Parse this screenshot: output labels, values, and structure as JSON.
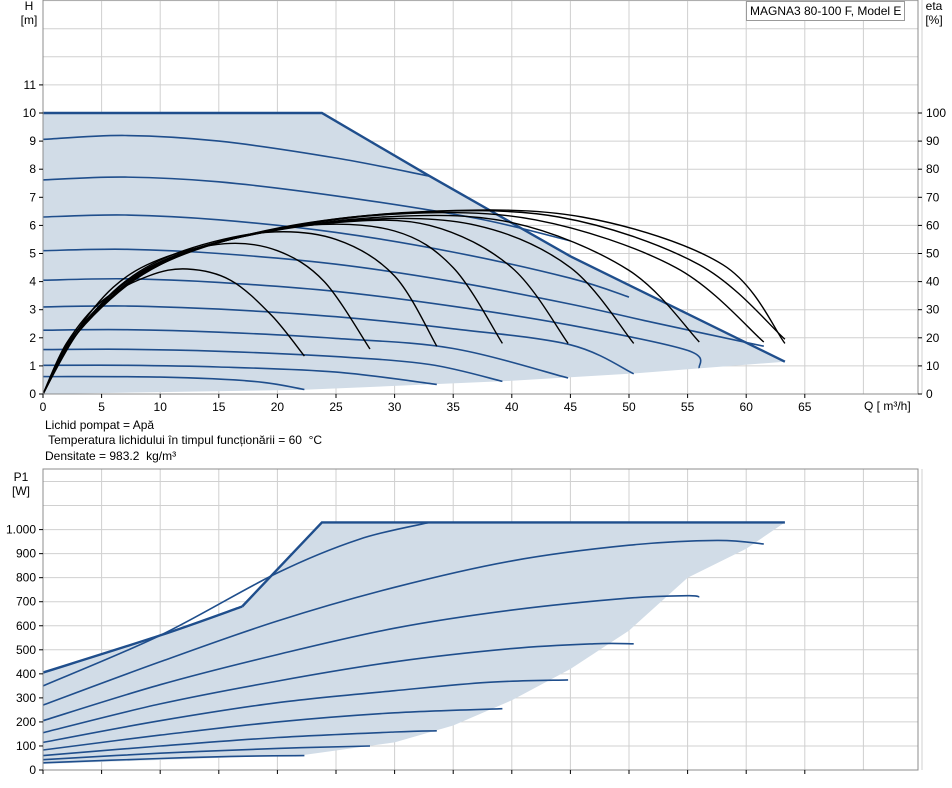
{
  "model_label": "MAGNA3 80-100 F, Model E",
  "fluid_info": {
    "line1": "Lichid pompat = Apă",
    "line2": " Temperatura lichidului în timpul funcționării = 60  °C",
    "line3": "Densitate = 983.2  kg/m³"
  },
  "colors": {
    "curve": "#1f4e8c",
    "fill": "#d1dce7",
    "efficiency": "#000000",
    "grid": "#d0d0d0"
  },
  "chart_data": [
    {
      "type": "line",
      "name": "head",
      "y_title": "H",
      "y_unit": "[m]",
      "y2_title": "eta",
      "y2_unit": "[%]",
      "x_title": "Q [ m³/h]",
      "xlim": [
        0,
        75
      ],
      "ylim": [
        0,
        14
      ],
      "y2lim": [
        0,
        140
      ],
      "x_ticks": [
        0,
        5,
        10,
        15,
        20,
        25,
        30,
        35,
        40,
        45,
        50,
        55,
        60,
        65
      ],
      "y_ticks": [
        0,
        1,
        2,
        3,
        4,
        5,
        6,
        7,
        8,
        9,
        10,
        11
      ],
      "y2_ticks": [
        0,
        10,
        20,
        30,
        40,
        50,
        60,
        70,
        80,
        90,
        100
      ],
      "grid": true,
      "envelope": {
        "max_curve": [
          [
            0,
            10.0
          ],
          [
            23.8,
            10.0
          ],
          [
            32.8,
            7.8
          ],
          [
            45.0,
            4.9
          ],
          [
            63.3,
            1.15
          ]
        ],
        "min_boundary": [
          [
            63.3,
            1.15
          ],
          [
            50.0,
            0.72
          ],
          [
            40.0,
            0.47
          ],
          [
            30.0,
            0.29
          ],
          [
            22.3,
            0.15
          ]
        ]
      },
      "head_curves": [
        {
          "points": [
            [
              0,
              9.06
            ],
            [
              7,
              9.2
            ],
            [
              15,
              9.0
            ],
            [
              25,
              8.4
            ],
            [
              33,
              7.75
            ]
          ]
        },
        {
          "points": [
            [
              0,
              7.62
            ],
            [
              7,
              7.72
            ],
            [
              15,
              7.55
            ],
            [
              25,
              7.05
            ],
            [
              37,
              6.25
            ],
            [
              45,
              5.45
            ]
          ]
        },
        {
          "points": [
            [
              0,
              6.3
            ],
            [
              7,
              6.37
            ],
            [
              15,
              6.2
            ],
            [
              25,
              5.75
            ],
            [
              35,
              5.05
            ],
            [
              45,
              4.12
            ],
            [
              50,
              3.45
            ]
          ]
        },
        {
          "points": [
            [
              0,
              5.1
            ],
            [
              7,
              5.15
            ],
            [
              15,
              5.0
            ],
            [
              25,
              4.62
            ],
            [
              35,
              4.0
            ],
            [
              45,
              3.2
            ],
            [
              52,
              2.55
            ],
            [
              61.5,
              1.7
            ]
          ]
        },
        {
          "points": [
            [
              0,
              4.05
            ],
            [
              7,
              4.1
            ],
            [
              15,
              3.97
            ],
            [
              25,
              3.65
            ],
            [
              35,
              3.12
            ],
            [
              45,
              2.45
            ],
            [
              55,
              1.55
            ],
            [
              56,
              0.92
            ]
          ]
        },
        {
          "points": [
            [
              0,
              3.1
            ],
            [
              7,
              3.13
            ],
            [
              15,
              3.02
            ],
            [
              25,
              2.75
            ],
            [
              35,
              2.32
            ],
            [
              45,
              1.75
            ],
            [
              50.4,
              0.72
            ]
          ]
        },
        {
          "points": [
            [
              0,
              2.27
            ],
            [
              7,
              2.29
            ],
            [
              15,
              2.2
            ],
            [
              25,
              1.98
            ],
            [
              35,
              1.62
            ],
            [
              44.8,
              0.57
            ]
          ]
        },
        {
          "points": [
            [
              0,
              1.58
            ],
            [
              7,
              1.59
            ],
            [
              15,
              1.52
            ],
            [
              25,
              1.33
            ],
            [
              33,
              1.05
            ],
            [
              39.2,
              0.45
            ]
          ]
        },
        {
          "points": [
            [
              0,
              1.02
            ],
            [
              7,
              1.02
            ],
            [
              15,
              0.96
            ],
            [
              25,
              0.78
            ],
            [
              33.6,
              0.34
            ]
          ]
        },
        {
          "points": [
            [
              0,
              0.62
            ],
            [
              10,
              0.6
            ],
            [
              18,
              0.45
            ],
            [
              22.3,
              0.16
            ]
          ]
        }
      ],
      "efficiency_curves": [
        {
          "points": [
            [
              0,
              0
            ],
            [
              2.0,
              18
            ],
            [
              5.0,
              33
            ],
            [
              9.0,
              42
            ],
            [
              12.3,
              44.5
            ],
            [
              16.0,
              40.5
            ],
            [
              19.5,
              28
            ],
            [
              22.3,
              13.5
            ]
          ]
        },
        {
          "points": [
            [
              0,
              0
            ],
            [
              2.5,
              20
            ],
            [
              6.0,
              38
            ],
            [
              10.0,
              48
            ],
            [
              15.5,
              53.5
            ],
            [
              20.0,
              51
            ],
            [
              24.0,
              40
            ],
            [
              27.9,
              16
            ]
          ]
        },
        {
          "points": [
            [
              0,
              0
            ],
            [
              3.0,
              22
            ],
            [
              7.0,
              40
            ],
            [
              12.0,
              51
            ],
            [
              19.0,
              57.5
            ],
            [
              25.0,
              55
            ],
            [
              30.0,
              42
            ],
            [
              33.6,
              17
            ]
          ]
        },
        {
          "points": [
            [
              0,
              0
            ],
            [
              3.0,
              22
            ],
            [
              8.0,
              42
            ],
            [
              14.0,
              53
            ],
            [
              22.5,
              60
            ],
            [
              30.0,
              58
            ],
            [
              35.0,
              45
            ],
            [
              39.2,
              18
            ]
          ]
        },
        {
          "points": [
            [
              0,
              0
            ],
            [
              3.0,
              22
            ],
            [
              8.5,
              43
            ],
            [
              15.0,
              54
            ],
            [
              25.0,
              61
            ],
            [
              33.0,
              60
            ],
            [
              40.0,
              45
            ],
            [
              44.8,
              18
            ]
          ]
        },
        {
          "points": [
            [
              0,
              0
            ],
            [
              3.0,
              22
            ],
            [
              9.0,
              44
            ],
            [
              16.0,
              55
            ],
            [
              27.0,
              62
            ],
            [
              37.0,
              60
            ],
            [
              45.0,
              45
            ],
            [
              50.4,
              18
            ]
          ]
        },
        {
          "points": [
            [
              0,
              0
            ],
            [
              3.0,
              23
            ],
            [
              9.0,
              44
            ],
            [
              17.0,
              56
            ],
            [
              29.0,
              63
            ],
            [
              40.0,
              61
            ],
            [
              50.0,
              44
            ],
            [
              56.0,
              18.5
            ]
          ]
        },
        {
          "points": [
            [
              0,
              0
            ],
            [
              3.0,
              23
            ],
            [
              9.0,
              45
            ],
            [
              18.0,
              57
            ],
            [
              30.0,
              64
            ],
            [
              42.0,
              62
            ],
            [
              54.0,
              45
            ],
            [
              61.5,
              18.5
            ]
          ]
        },
        {
          "points": [
            [
              0,
              0
            ],
            [
              3.0,
              23
            ],
            [
              9.5,
              45
            ],
            [
              19.0,
              58
            ],
            [
              31.0,
              64.5
            ],
            [
              44.0,
              63
            ],
            [
              56.0,
              46
            ],
            [
              63.3,
              19.5
            ]
          ]
        },
        {
          "points": [
            [
              0,
              0
            ],
            [
              3.0,
              23
            ],
            [
              10.0,
              46
            ],
            [
              20.0,
              59
            ],
            [
              33.0,
              65
            ],
            [
              46.0,
              63
            ],
            [
              58.0,
              46
            ],
            [
              63.3,
              18
            ]
          ]
        }
      ]
    },
    {
      "type": "line",
      "name": "power",
      "y_title": "P1",
      "y_unit": "[W]",
      "xlim": [
        0,
        75
      ],
      "ylim": [
        0,
        1200
      ],
      "y_ticks": [
        0,
        100,
        200,
        300,
        400,
        500,
        600,
        700,
        800,
        900,
        1000
      ],
      "y_tick_labels": [
        "0",
        "100",
        "200",
        "300",
        "400",
        "500",
        "600",
        "700",
        "800",
        "900",
        "1.000"
      ],
      "grid": true,
      "envelope": {
        "max_curve": [
          [
            0,
            405
          ],
          [
            10,
            560
          ],
          [
            17,
            680
          ],
          [
            23.8,
            1030
          ],
          [
            63.3,
            1030
          ]
        ],
        "min_boundary": [
          [
            63.3,
            1030
          ],
          [
            60,
            920
          ],
          [
            55,
            800
          ],
          [
            50,
            580
          ],
          [
            45,
            420
          ],
          [
            40,
            290
          ],
          [
            35,
            185
          ],
          [
            30,
            115
          ],
          [
            22.3,
            63
          ]
        ]
      },
      "power_curves": [
        {
          "points": [
            [
              0,
              350
            ],
            [
              10,
              560
            ],
            [
              20,
              820
            ],
            [
              27,
              960
            ],
            [
              33,
              1030
            ]
          ]
        },
        {
          "points": [
            [
              0,
              270
            ],
            [
              10,
              450
            ],
            [
              20,
              620
            ],
            [
              30,
              760
            ],
            [
              40,
              870
            ],
            [
              50,
              935
            ],
            [
              57.5,
              955
            ],
            [
              61.5,
              940
            ]
          ]
        },
        {
          "points": [
            [
              0,
              205
            ],
            [
              10,
              355
            ],
            [
              20,
              480
            ],
            [
              30,
              590
            ],
            [
              40,
              665
            ],
            [
              50,
              715
            ],
            [
              55,
              725
            ],
            [
              56,
              720
            ]
          ]
        },
        {
          "points": [
            [
              0,
              155
            ],
            [
              10,
              275
            ],
            [
              20,
              370
            ],
            [
              30,
              450
            ],
            [
              40,
              505
            ],
            [
              47,
              525
            ],
            [
              50.4,
              525
            ]
          ]
        },
        {
          "points": [
            [
              0,
              115
            ],
            [
              10,
              205
            ],
            [
              20,
              280
            ],
            [
              30,
              330
            ],
            [
              38,
              365
            ],
            [
              44.8,
              375
            ]
          ]
        },
        {
          "points": [
            [
              0,
              83
            ],
            [
              10,
              145
            ],
            [
              20,
              200
            ],
            [
              30,
              238
            ],
            [
              39.2,
              255
            ]
          ]
        },
        {
          "points": [
            [
              0,
              60
            ],
            [
              10,
              100
            ],
            [
              20,
              135
            ],
            [
              30,
              158
            ],
            [
              33.6,
              163
            ]
          ]
        },
        {
          "points": [
            [
              0,
              43
            ],
            [
              10,
              70
            ],
            [
              20,
              90
            ],
            [
              27.9,
              100
            ]
          ]
        },
        {
          "points": [
            [
              0,
              30
            ],
            [
              10,
              48
            ],
            [
              18,
              58
            ],
            [
              22.3,
              60
            ]
          ]
        }
      ]
    }
  ]
}
